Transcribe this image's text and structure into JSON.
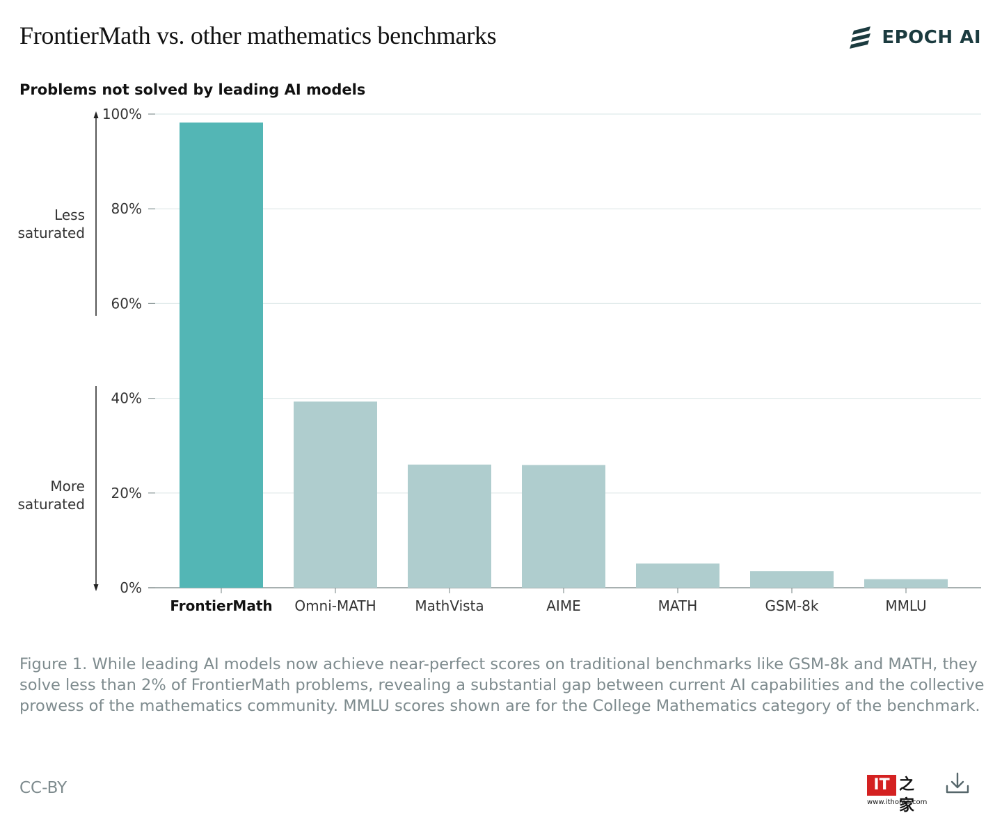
{
  "header": {
    "title": "FrontierMath vs. other mathematics benchmarks",
    "brand": "EPOCH AI"
  },
  "chart_data": {
    "type": "bar",
    "subtitle": "Problems not solved by leading AI models",
    "categories": [
      "FrontierMath",
      "Omni-MATH",
      "MathVista",
      "AIME",
      "MATH",
      "GSM-8k",
      "MMLU"
    ],
    "values": [
      98.2,
      39.3,
      26.0,
      25.9,
      5.1,
      3.5,
      1.8
    ],
    "highlight_index": 0,
    "ylim": [
      0,
      100
    ],
    "yticks": [
      0,
      20,
      40,
      60,
      80,
      100
    ],
    "ytick_labels": [
      "0%",
      "20%",
      "40%",
      "60%",
      "80%",
      "100%"
    ],
    "annotations": {
      "top": [
        "Less",
        "saturated"
      ],
      "bottom": [
        "More",
        "saturated"
      ]
    },
    "grid": true,
    "colors": {
      "highlight": "#53b6b5",
      "bar": "#afcdce",
      "grid": "#dfe9e9",
      "axis": "#8a9696",
      "text": "#333333"
    }
  },
  "caption": "Figure 1. While leading AI models now achieve near-perfect scores on traditional benchmarks like GSM-8k and MATH, they solve less than 2% of FrontierMath problems, revealing a substantial gap between current AI capabilities and the collective prowess of the mathematics community. MMLU scores shown are for the College Mathematics category of the benchmark.",
  "footer": {
    "license": "CC-BY",
    "watermark_logo": "IT",
    "watermark_chars": "之家",
    "watermark_url": "www.ithome.com",
    "download_icon": "download-icon"
  }
}
